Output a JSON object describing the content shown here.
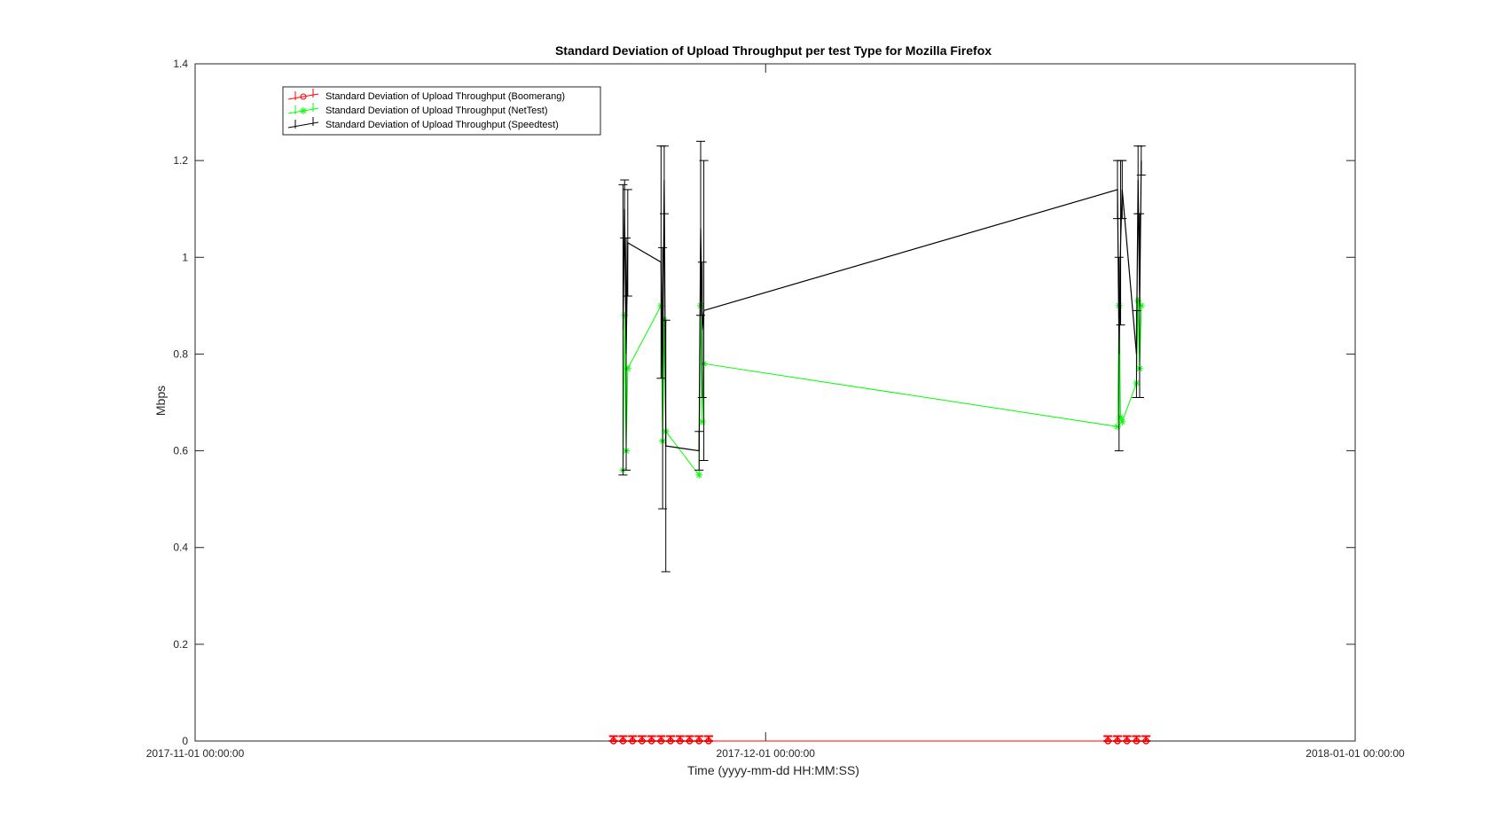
{
  "chart_data": {
    "type": "line",
    "title": "Standard Deviation of Upload Throughput per test Type for Mozilla Firefox",
    "xlabel": "Time (yyyy-mm-dd HH:MM:SS)",
    "ylabel": "Mbps",
    "x_ticks": [
      "2017-11-01 00:00:00",
      "2017-12-01 00:00:00",
      "2018-01-01 00:00:00"
    ],
    "xlim": [
      "2017-11-01 00:00:00",
      "2018-01-01 00:00:00"
    ],
    "y_ticks": [
      "0",
      "0.2",
      "0.4",
      "0.6",
      "0.8",
      "1",
      "1.2",
      "1.4"
    ],
    "ylim": [
      0,
      1.4
    ],
    "grid": false,
    "legend_position": "top-left",
    "series": [
      {
        "name": "Standard Deviation of Upload Throughput (Boomerang)",
        "color": "#ff0000",
        "marker": "circle",
        "x": [
          "2017-11-23 00:00:00",
          "2017-11-23 12:00:00",
          "2017-11-24 00:00:00",
          "2017-11-24 12:00:00",
          "2017-11-25 00:00:00",
          "2017-11-25 12:00:00",
          "2017-11-26 00:00:00",
          "2017-11-26 12:00:00",
          "2017-11-27 00:00:00",
          "2017-11-27 12:00:00",
          "2017-11-28 00:00:00",
          "2017-12-19 00:00:00",
          "2017-12-19 12:00:00",
          "2017-12-20 00:00:00",
          "2017-12-20 12:00:00",
          "2017-12-21 00:00:00"
        ],
        "y": [
          0,
          0,
          0,
          0,
          0,
          0,
          0,
          0,
          0,
          0,
          0,
          0,
          0,
          0,
          0,
          0
        ],
        "err": [
          0.01,
          0.01,
          0.01,
          0.01,
          0.01,
          0.01,
          0.01,
          0.01,
          0.01,
          0.01,
          0.01,
          0.01,
          0.01,
          0.01,
          0.01,
          0.01
        ]
      },
      {
        "name": "Standard Deviation of Upload Throughput (NetTest)",
        "color": "#00ff00",
        "marker": "asterisk",
        "x": [
          "2017-11-23 12:00:00",
          "2017-11-23 14:00:00",
          "2017-11-23 16:00:00",
          "2017-11-23 18:00:00",
          "2017-11-25 12:00:00",
          "2017-11-25 14:00:00",
          "2017-11-25 16:00:00",
          "2017-11-25 18:00:00",
          "2017-11-27 12:00:00",
          "2017-11-27 14:00:00",
          "2017-11-27 16:00:00",
          "2017-11-27 18:00:00",
          "2017-12-19 12:00:00",
          "2017-12-19 14:00:00",
          "2017-12-19 16:00:00",
          "2017-12-19 18:00:00",
          "2017-12-20 12:00:00",
          "2017-12-20 14:00:00",
          "2017-12-20 16:00:00",
          "2017-12-20 18:00:00"
        ],
        "y": [
          0.56,
          0.88,
          0.6,
          0.77,
          0.9,
          0.62,
          0.87,
          0.64,
          0.55,
          0.9,
          0.66,
          0.78,
          0.65,
          0.9,
          0.67,
          0.66,
          0.74,
          0.91,
          0.77,
          0.9
        ],
        "err": [
          0,
          0,
          0,
          0,
          0,
          0,
          0,
          0,
          0,
          0,
          0,
          0,
          0,
          0,
          0,
          0,
          0,
          0,
          0,
          0
        ]
      },
      {
        "name": "Standard Deviation of Upload Throughput (Speedtest)",
        "color": "#000000",
        "marker": "none",
        "x": [
          "2017-11-23 12:00:00",
          "2017-11-23 14:00:00",
          "2017-11-23 16:00:00",
          "2017-11-23 18:00:00",
          "2017-11-25 12:00:00",
          "2017-11-25 14:00:00",
          "2017-11-25 16:00:00",
          "2017-11-25 18:00:00",
          "2017-11-27 12:00:00",
          "2017-11-27 14:00:00",
          "2017-11-27 16:00:00",
          "2017-11-27 18:00:00",
          "2017-12-19 12:00:00",
          "2017-12-19 14:00:00",
          "2017-12-19 16:00:00",
          "2017-12-19 18:00:00",
          "2017-12-20 12:00:00",
          "2017-12-20 14:00:00",
          "2017-12-20 16:00:00",
          "2017-12-20 18:00:00"
        ],
        "y": [
          0.85,
          1.1,
          0.8,
          1.03,
          0.99,
          0.75,
          1.16,
          0.61,
          0.6,
          1.06,
          0.85,
          0.89,
          1.14,
          0.8,
          1.03,
          1.14,
          0.8,
          1.16,
          0.9,
          1.2
        ],
        "err": [
          0.3,
          0.06,
          0.24,
          0.11,
          0.24,
          0.27,
          0.07,
          0.26,
          0.04,
          0.18,
          0.14,
          0.31,
          0.06,
          0.2,
          0.17,
          0.06,
          0.09,
          0.07,
          0.19,
          0.03
        ]
      }
    ]
  }
}
